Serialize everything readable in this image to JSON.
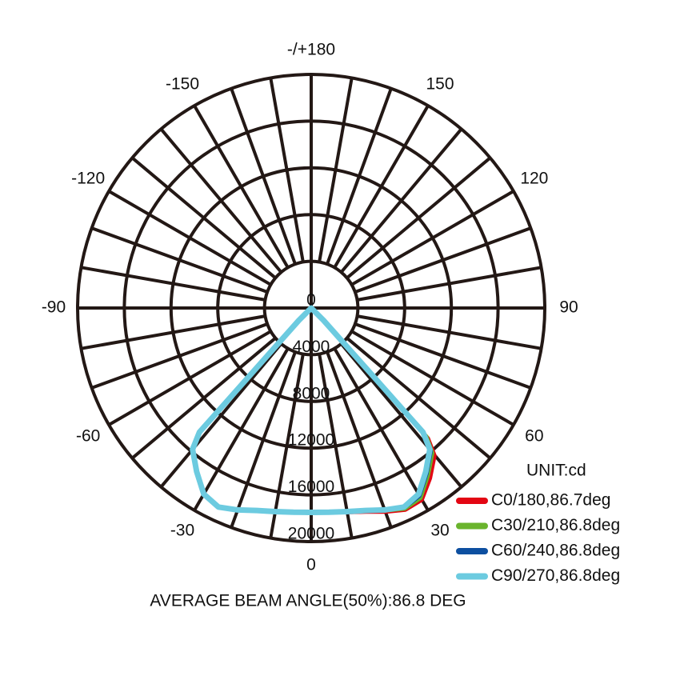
{
  "chart_data": {
    "type": "polar",
    "theta_zero": "bottom",
    "thetaticks": [
      0,
      30,
      60,
      90,
      120,
      150,
      {
        "value": 180,
        "label": "-/+180"
      },
      -150,
      -120,
      -90,
      -60,
      -30
    ],
    "rlim": [
      0,
      20000
    ],
    "rticks": [
      0,
      4000,
      8000,
      12000,
      16000,
      20000
    ],
    "unit_label": "UNIT:cd",
    "x": [
      -50,
      -45,
      -42,
      -40,
      -35,
      -30,
      -25,
      -20,
      -15,
      -10,
      -5,
      0,
      5,
      10,
      15,
      20,
      25,
      30,
      35,
      40,
      42,
      45,
      50
    ],
    "series": [
      {
        "name": "C0/180,86.7deg",
        "color": "#e30613",
        "values": [
          0,
          1500,
          14300,
          15800,
          17100,
          18400,
          18800,
          18400,
          17950,
          17700,
          17550,
          17500,
          17600,
          17800,
          18100,
          18600,
          19100,
          19000,
          17800,
          16500,
          15000,
          1600,
          0
        ]
      },
      {
        "name": "C30/210,86.8deg",
        "color": "#6ab42d",
        "values": [
          0,
          1500,
          14300,
          15800,
          17100,
          18400,
          18800,
          18400,
          17950,
          17700,
          17550,
          17500,
          17580,
          17750,
          18000,
          18500,
          19000,
          18800,
          17500,
          16200,
          14800,
          1500,
          0
        ]
      },
      {
        "name": "C60/240,86.8deg",
        "color": "#0d4fa0",
        "values": [
          0,
          1500,
          14300,
          15800,
          17100,
          18400,
          18800,
          18400,
          17950,
          17700,
          17550,
          17500,
          17560,
          17720,
          17980,
          18450,
          18900,
          18600,
          17300,
          16000,
          14600,
          1500,
          0
        ]
      },
      {
        "name": "C90/270,86.8deg",
        "color": "#6ccbe0",
        "values": [
          0,
          1500,
          14300,
          15800,
          17100,
          18400,
          18800,
          18400,
          17950,
          17700,
          17550,
          17500,
          17550,
          17700,
          17950,
          18400,
          18800,
          18400,
          17100,
          15800,
          14300,
          1500,
          0
        ]
      }
    ],
    "footer": "AVERAGE BEAM ANGLE(50%):86.8 DEG"
  }
}
